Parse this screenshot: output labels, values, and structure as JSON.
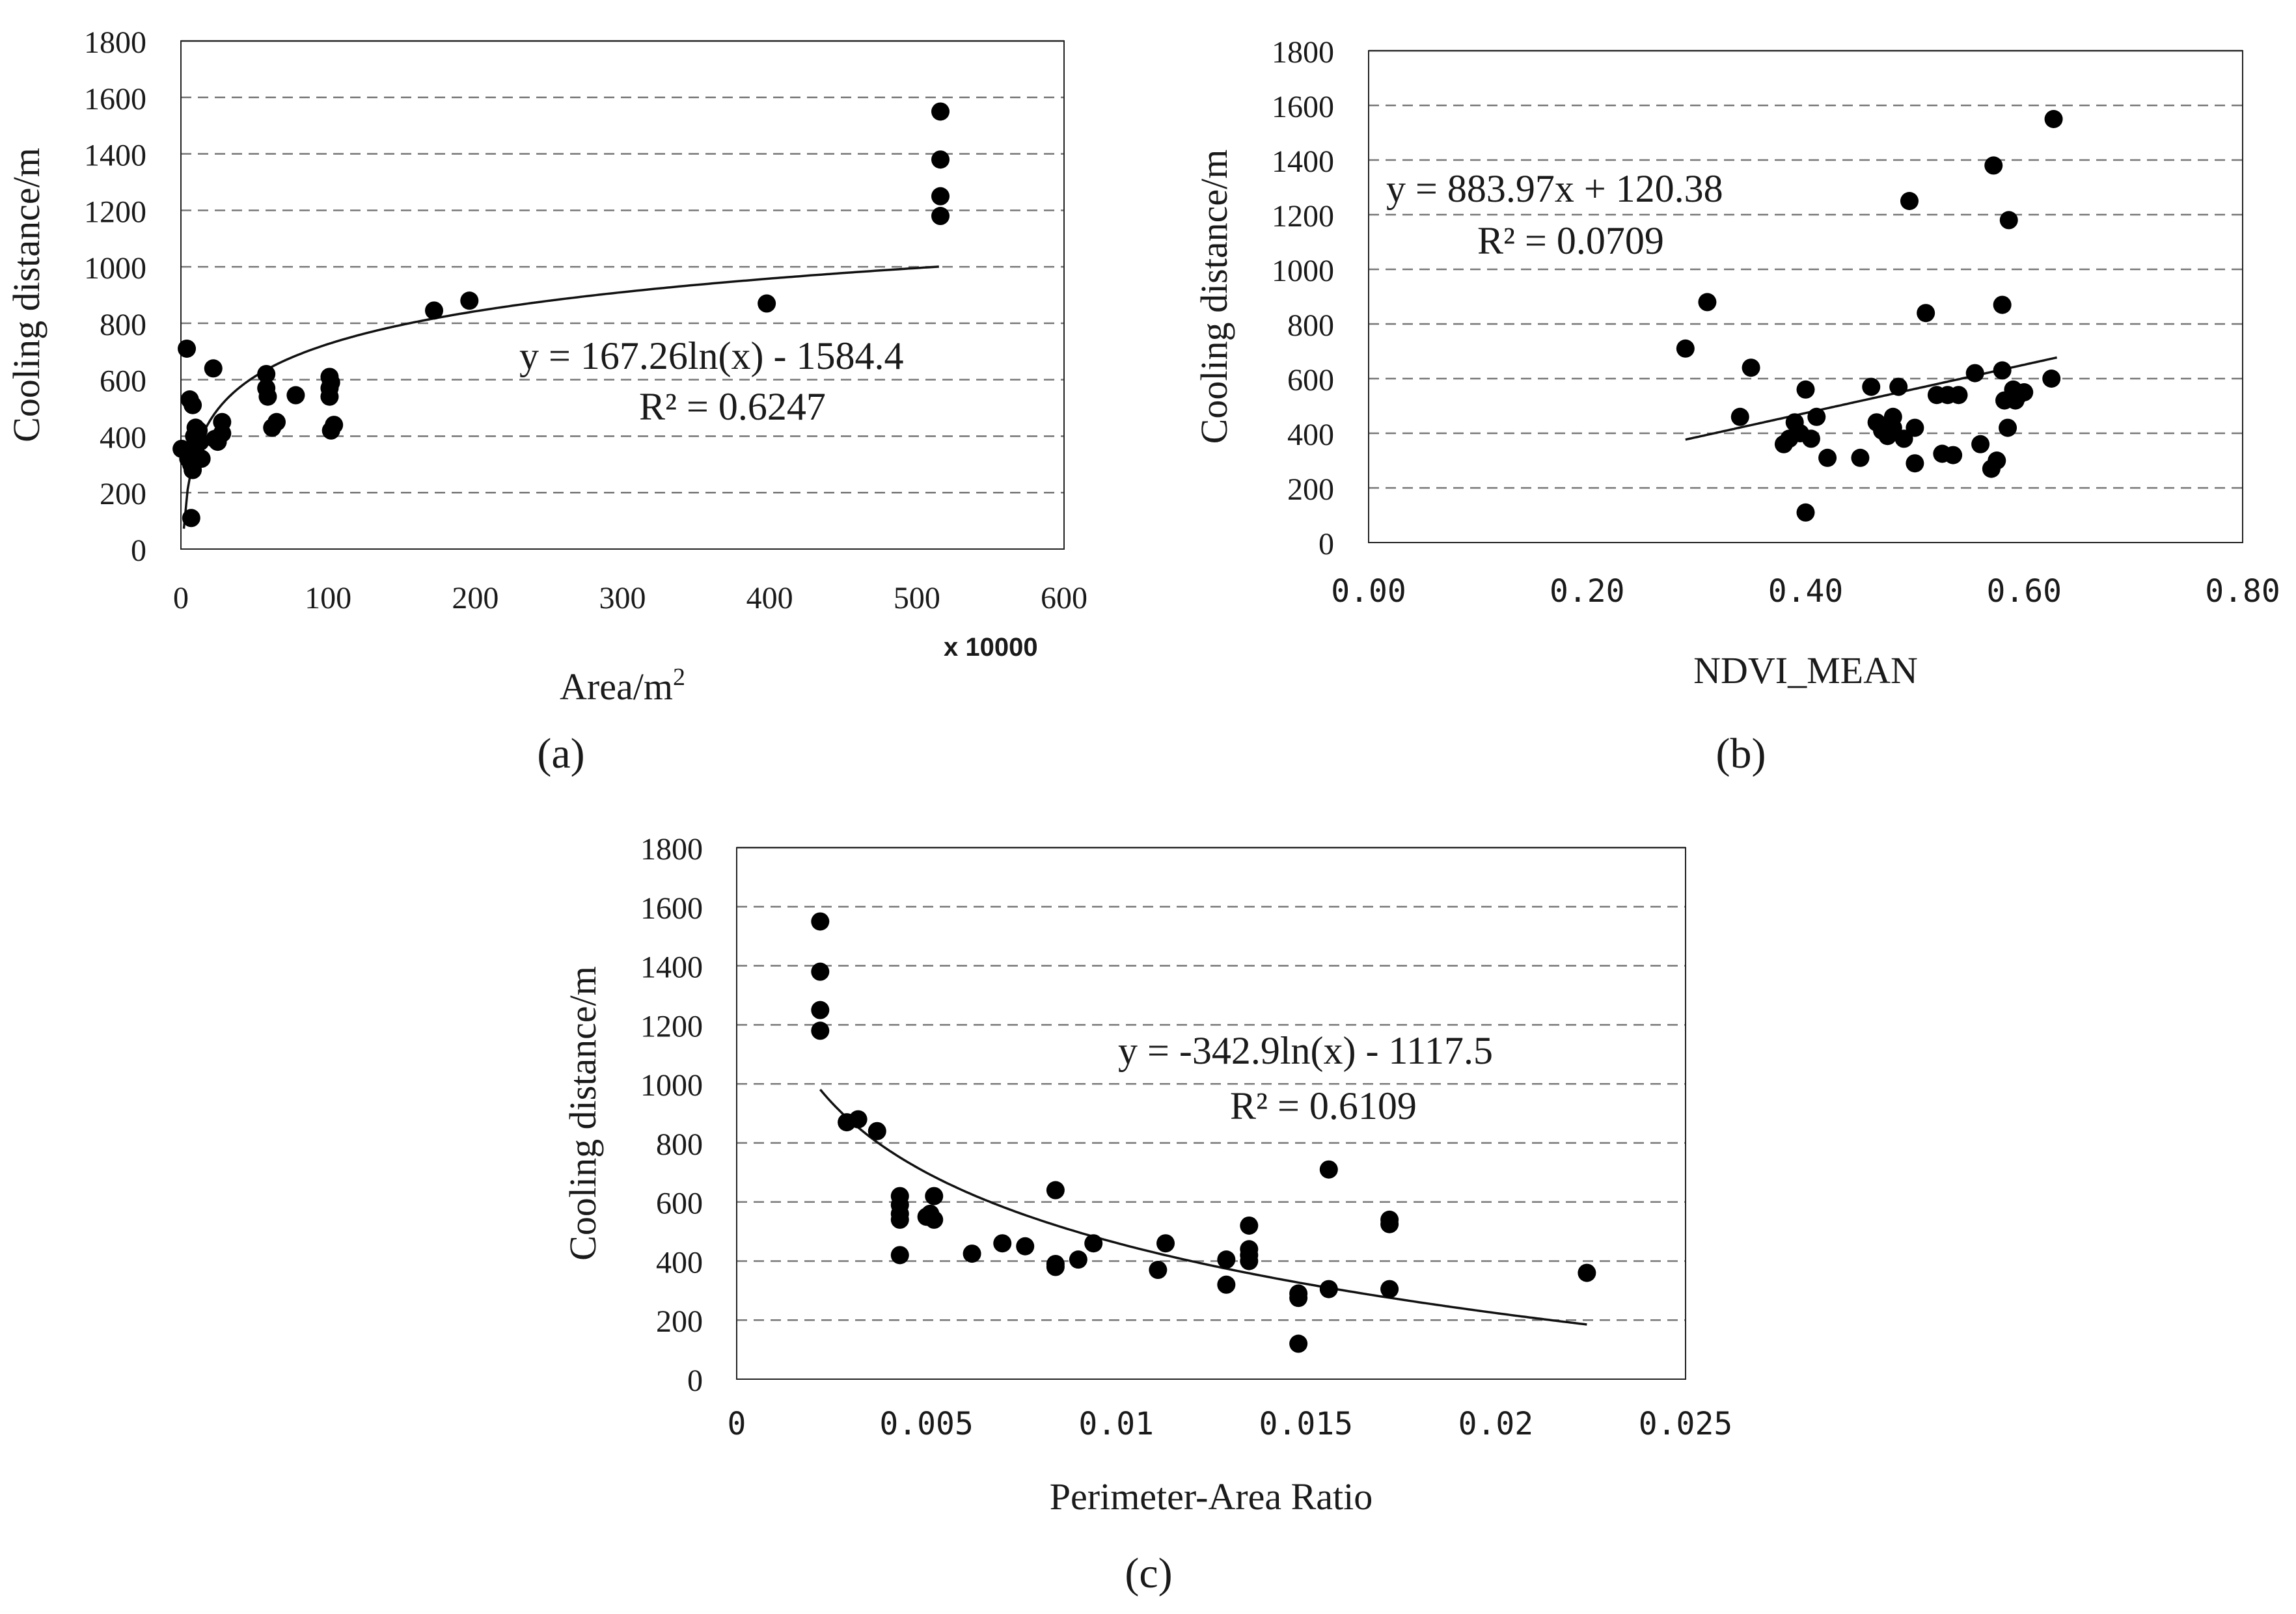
{
  "chart_data": [
    {
      "type": "scatter",
      "panel_label": "(a)",
      "xlabel": "Area/m",
      "xlabel_sup": "2",
      "x_multiplier_label": "x 10000",
      "ylabel": "Cooling distance/m",
      "xlim": [
        0,
        600
      ],
      "ylim": [
        0,
        1800
      ],
      "x_ticks": [
        0,
        100,
        200,
        300,
        400,
        500,
        600
      ],
      "x_tick_labels": [
        "0",
        "100",
        "200",
        "300",
        "400",
        "500",
        "600"
      ],
      "y_ticks": [
        0,
        200,
        400,
        600,
        800,
        1000,
        1200,
        1400,
        1600,
        1800
      ],
      "y_tick_labels": [
        "0",
        "200",
        "400",
        "600",
        "800",
        "1000",
        "1200",
        "1400",
        "1600",
        "1800"
      ],
      "grid": "horizontal dashed",
      "equation": "y = 167.26ln(x) - 1584.4",
      "r2": "R² = 0.6247",
      "trendline": {
        "kind": "log",
        "a": 167.26,
        "b": -1584.4,
        "scale": 10000,
        "x_range": [
          2,
          515
        ]
      },
      "points": [
        [
          0.5,
          355
        ],
        [
          4,
          710
        ],
        [
          5,
          320
        ],
        [
          6,
          530
        ],
        [
          7,
          300
        ],
        [
          7,
          110
        ],
        [
          8,
          510
        ],
        [
          8,
          280
        ],
        [
          9,
          400
        ],
        [
          10,
          430
        ],
        [
          10,
          360
        ],
        [
          11,
          330
        ],
        [
          12,
          420
        ],
        [
          13,
          380
        ],
        [
          14,
          320
        ],
        [
          22,
          640
        ],
        [
          23,
          390
        ],
        [
          25,
          380
        ],
        [
          28,
          410
        ],
        [
          28,
          450
        ],
        [
          58,
          620
        ],
        [
          58,
          570
        ],
        [
          59,
          540
        ],
        [
          62,
          430
        ],
        [
          65,
          450
        ],
        [
          78,
          545
        ],
        [
          101,
          610
        ],
        [
          101,
          570
        ],
        [
          101,
          540
        ],
        [
          102,
          590
        ],
        [
          102,
          420
        ],
        [
          104,
          440
        ],
        [
          172,
          845
        ],
        [
          196,
          880
        ],
        [
          398,
          870
        ],
        [
          516,
          1550
        ],
        [
          516,
          1380
        ],
        [
          516,
          1250
        ],
        [
          516,
          1180
        ]
      ]
    },
    {
      "type": "scatter",
      "panel_label": "(b)",
      "xlabel": "NDVI_MEAN",
      "ylabel": "Cooling distance/m",
      "xlim": [
        0,
        0.8
      ],
      "ylim": [
        0,
        1800
      ],
      "x_ticks": [
        0,
        0.2,
        0.4,
        0.6,
        0.8
      ],
      "x_tick_labels": [
        "0.00",
        "0.20",
        "0.40",
        "0.60",
        "0.80"
      ],
      "y_ticks": [
        0,
        200,
        400,
        600,
        800,
        1000,
        1200,
        1400,
        1600,
        1800
      ],
      "y_tick_labels": [
        "0",
        "200",
        "400",
        "600",
        "800",
        "1000",
        "1200",
        "1400",
        "1600",
        "1800"
      ],
      "grid": "horizontal dashed",
      "equation": "y = 883.97x + 120.38",
      "r2": "R² = 0.0709",
      "trendline": {
        "kind": "linear",
        "a": 883.97,
        "b": 120.38,
        "x_range": [
          0.29,
          0.63
        ]
      },
      "points": [
        [
          0.29,
          710
        ],
        [
          0.31,
          880
        ],
        [
          0.34,
          460
        ],
        [
          0.35,
          640
        ],
        [
          0.38,
          360
        ],
        [
          0.385,
          380
        ],
        [
          0.39,
          440
        ],
        [
          0.395,
          400
        ],
        [
          0.4,
          110
        ],
        [
          0.4,
          560
        ],
        [
          0.405,
          380
        ],
        [
          0.41,
          460
        ],
        [
          0.42,
          310
        ],
        [
          0.45,
          310
        ],
        [
          0.46,
          570
        ],
        [
          0.465,
          440
        ],
        [
          0.47,
          410
        ],
        [
          0.475,
          390
        ],
        [
          0.48,
          460
        ],
        [
          0.48,
          420
        ],
        [
          0.485,
          570
        ],
        [
          0.49,
          380
        ],
        [
          0.495,
          1250
        ],
        [
          0.5,
          420
        ],
        [
          0.5,
          290
        ],
        [
          0.51,
          840
        ],
        [
          0.52,
          540
        ],
        [
          0.525,
          325
        ],
        [
          0.53,
          540
        ],
        [
          0.535,
          320
        ],
        [
          0.54,
          540
        ],
        [
          0.555,
          620
        ],
        [
          0.56,
          360
        ],
        [
          0.57,
          270
        ],
        [
          0.572,
          1380
        ],
        [
          0.575,
          300
        ],
        [
          0.58,
          630
        ],
        [
          0.58,
          870
        ],
        [
          0.582,
          520
        ],
        [
          0.585,
          420
        ],
        [
          0.586,
          1180
        ],
        [
          0.59,
          560
        ],
        [
          0.592,
          520
        ],
        [
          0.595,
          540
        ],
        [
          0.6,
          550
        ],
        [
          0.625,
          600
        ],
        [
          0.627,
          1550
        ]
      ]
    },
    {
      "type": "scatter",
      "panel_label": "(c)",
      "xlabel": "Perimeter-Area Ratio",
      "ylabel": "Cooling distance/m",
      "xlim": [
        0,
        0.025
      ],
      "ylim": [
        0,
        1800
      ],
      "x_ticks": [
        0,
        0.005,
        0.01,
        0.015,
        0.02,
        0.025
      ],
      "x_tick_labels": [
        "0",
        "0.005",
        "0.01",
        "0.015",
        "0.02",
        "0.025"
      ],
      "y_ticks": [
        0,
        200,
        400,
        600,
        800,
        1000,
        1200,
        1400,
        1600,
        1800
      ],
      "y_tick_labels": [
        "0",
        "200",
        "400",
        "600",
        "800",
        "1000",
        "1200",
        "1400",
        "1600",
        "1800"
      ],
      "grid": "horizontal dashed",
      "equation": "y = -342.9ln(x) - 1117.5",
      "r2": "R² = 0.6109",
      "trendline": {
        "kind": "log",
        "a": -342.9,
        "b": -1117.5,
        "scale": 1,
        "x_range": [
          0.0022,
          0.0224
        ]
      },
      "points": [
        [
          0.0022,
          1550
        ],
        [
          0.0022,
          1380
        ],
        [
          0.0022,
          1250
        ],
        [
          0.0022,
          1180
        ],
        [
          0.0029,
          870
        ],
        [
          0.0032,
          880
        ],
        [
          0.0037,
          840
        ],
        [
          0.0043,
          620
        ],
        [
          0.0043,
          590
        ],
        [
          0.0043,
          560
        ],
        [
          0.0043,
          540
        ],
        [
          0.0043,
          420
        ],
        [
          0.005,
          550
        ],
        [
          0.0051,
          560
        ],
        [
          0.0052,
          620
        ],
        [
          0.0052,
          540
        ],
        [
          0.0062,
          425
        ],
        [
          0.007,
          460
        ],
        [
          0.0076,
          450
        ],
        [
          0.0084,
          640
        ],
        [
          0.0084,
          390
        ],
        [
          0.0084,
          380
        ],
        [
          0.009,
          405
        ],
        [
          0.0094,
          460
        ],
        [
          0.0111,
          370
        ],
        [
          0.0113,
          460
        ],
        [
          0.0129,
          405
        ],
        [
          0.0129,
          320
        ],
        [
          0.0135,
          520
        ],
        [
          0.0135,
          440
        ],
        [
          0.0135,
          420
        ],
        [
          0.0135,
          400
        ],
        [
          0.0148,
          290
        ],
        [
          0.0148,
          275
        ],
        [
          0.0148,
          120
        ],
        [
          0.0156,
          710
        ],
        [
          0.0156,
          305
        ],
        [
          0.0172,
          540
        ],
        [
          0.0172,
          525
        ],
        [
          0.0172,
          305
        ],
        [
          0.0224,
          360
        ]
      ]
    }
  ]
}
